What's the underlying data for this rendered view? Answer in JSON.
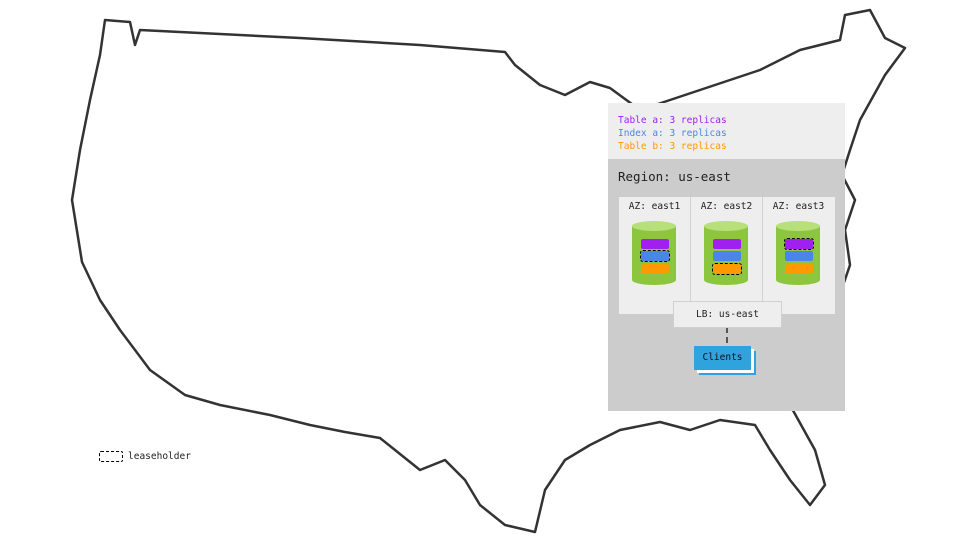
{
  "legend": {
    "items": [
      {
        "label": "Table a: 3 replicas",
        "color": "#a020f0"
      },
      {
        "label": "Index a: 3 replicas",
        "color": "#4a86e8"
      },
      {
        "label": "Table b: 3 replicas",
        "color": "#ff9900"
      }
    ],
    "leaseholder_label": "leaseholder"
  },
  "region": {
    "title": "Region: us-east",
    "azs": [
      {
        "label": "AZ: east1",
        "leaseholder": "Index a"
      },
      {
        "label": "AZ: east2",
        "leaseholder": "Table b"
      },
      {
        "label": "AZ: east3",
        "leaseholder": "Table a"
      }
    ],
    "lb_label": "LB: us-east",
    "clients_label": "Clients"
  },
  "colors": {
    "node": "#8cc63f",
    "node_top": "#b8e07a",
    "clients": "#2fa3de"
  }
}
